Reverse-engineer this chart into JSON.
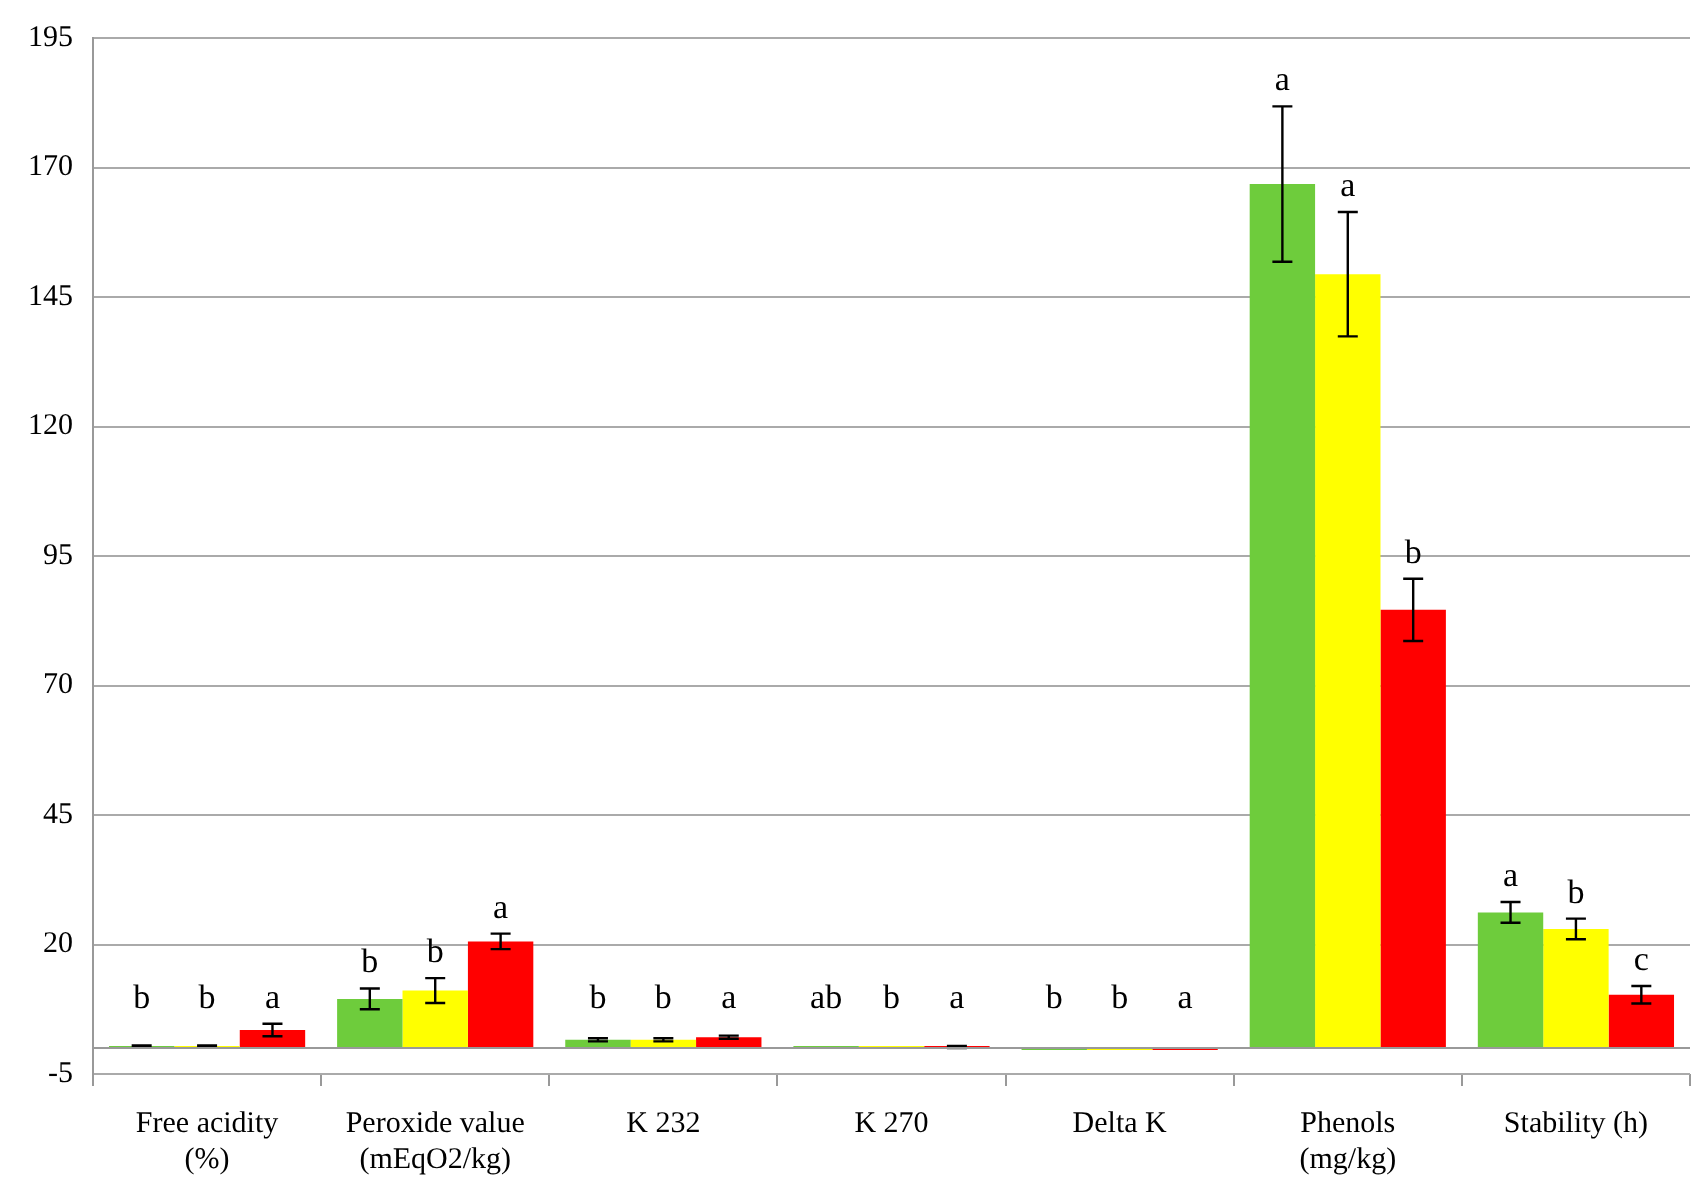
{
  "chart_data": {
    "type": "bar",
    "categories": [
      "Free acidity\n(%)",
      "Peroxide value\n(mEqO2/kg)",
      "K 232",
      "K 270",
      "Delta K",
      "Phenols\n(mg/kg)",
      "Stability (h)"
    ],
    "series": [
      {
        "color": "#6ecc3c",
        "values": [
          0.3,
          9.5,
          1.6,
          0.1,
          -0.3,
          166.8,
          26.2
        ],
        "errors": [
          0.2,
          2,
          0.3,
          null,
          null,
          15,
          2
        ],
        "value_labels": [
          "b",
          "b",
          "b",
          "ab",
          "b",
          "a",
          "a"
        ]
      },
      {
        "color": "#ffff00",
        "values": [
          0.3,
          11.1,
          1.6,
          0.1,
          -0.3,
          149.4,
          23
        ],
        "errors": [
          0.2,
          2.4,
          0.3,
          null,
          null,
          12,
          2
        ],
        "value_labels": [
          "b",
          "b",
          "b",
          "b",
          "b",
          "a",
          "b"
        ]
      },
      {
        "color": "#ff0000",
        "values": [
          3.5,
          20.6,
          2.1,
          0.2,
          -0.1,
          84.6,
          10.3
        ],
        "errors": [
          1.2,
          1.5,
          0.3,
          0.2,
          null,
          6,
          1.7
        ],
        "value_labels": [
          "a",
          "a",
          "a",
          "a",
          "a",
          "b",
          "c"
        ]
      }
    ],
    "ylim": [
      -5,
      195
    ],
    "yticks": [
      -5,
      20,
      45,
      70,
      95,
      120,
      145,
      170,
      195
    ],
    "grid": "y",
    "legend": false
  }
}
